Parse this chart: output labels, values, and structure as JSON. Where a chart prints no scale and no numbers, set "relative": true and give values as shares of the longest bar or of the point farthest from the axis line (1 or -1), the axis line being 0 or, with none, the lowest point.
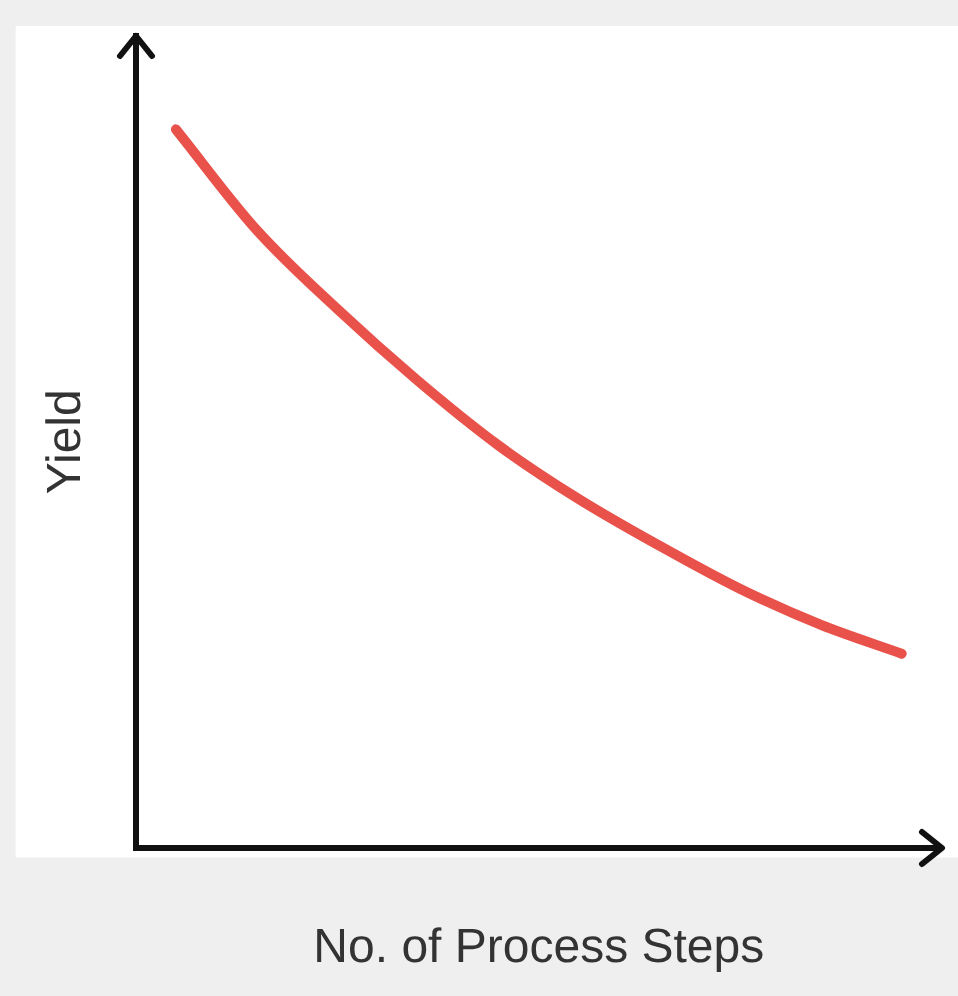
{
  "chart_data": {
    "type": "line",
    "relative": true,
    "xlabel": "No. of Process Steps",
    "ylabel": "Yield",
    "categories": [
      null,
      null,
      null,
      null,
      null,
      null,
      null,
      null,
      null,
      null
    ],
    "series": [
      {
        "color": "#e8524a",
        "values": [
          1.0,
          0.86,
          0.75,
          0.65,
          0.56,
          0.485,
          0.42,
          0.36,
          0.31,
          0.27
        ]
      }
    ],
    "grid": false,
    "legend": false,
    "marker": "none"
  }
}
